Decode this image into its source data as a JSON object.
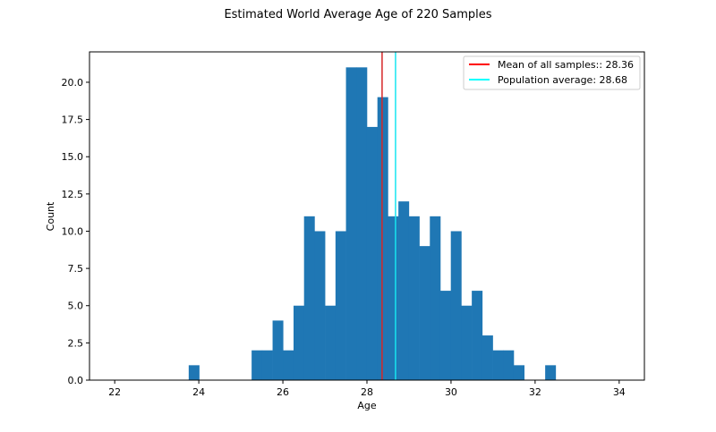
{
  "chart_data": {
    "type": "bar",
    "title": "Estimated World Average Age of 220 Samples",
    "xlabel": "Age",
    "ylabel": "Count",
    "xlim": [
      21.4,
      34.6
    ],
    "ylim": [
      0,
      22.04
    ],
    "xticks": [
      22,
      24,
      26,
      28,
      30,
      32,
      34
    ],
    "yticks": [
      "0.0",
      "2.5",
      "5.0",
      "7.5",
      "10.0",
      "12.5",
      "15.0",
      "17.5",
      "20.0"
    ],
    "bin_start": 23.76,
    "bin_width": 0.2494,
    "counts": [
      1,
      0,
      0,
      0,
      0,
      0,
      2,
      2,
      4,
      2,
      5,
      11,
      10,
      5,
      10,
      21,
      21,
      17,
      19,
      11,
      12,
      11,
      9,
      11,
      6,
      10,
      5,
      6,
      3,
      2,
      2,
      1,
      0,
      0,
      1
    ],
    "bar_color": "#1f77b4",
    "vlines": [
      {
        "name": "Mean of all samples:: 28.36",
        "x": 28.36,
        "color": "#d62728"
      },
      {
        "name": "Population average: 28.68",
        "x": 28.68,
        "color": "#17e5f0"
      }
    ],
    "legend_placement": "top-right",
    "grid": false
  }
}
